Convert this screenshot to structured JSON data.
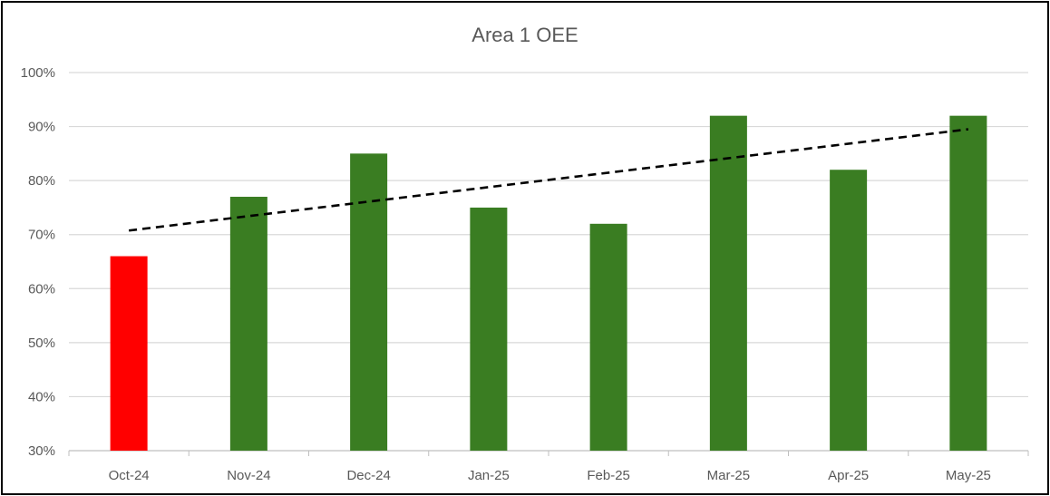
{
  "chart_data": {
    "type": "bar",
    "title": "Area 1 OEE",
    "xlabel": "",
    "ylabel": "",
    "categories": [
      "Oct-24",
      "Nov-24",
      "Dec-24",
      "Jan-25",
      "Feb-25",
      "Mar-25",
      "Apr-25",
      "May-25"
    ],
    "values": [
      0.66,
      0.77,
      0.85,
      0.75,
      0.72,
      0.92,
      0.82,
      0.92
    ],
    "bar_colors": [
      "#ff0000",
      "#3a7d22",
      "#3a7d22",
      "#3a7d22",
      "#3a7d22",
      "#3a7d22",
      "#3a7d22",
      "#3a7d22"
    ],
    "ylim": [
      0.3,
      1.0
    ],
    "yticks": [
      0.3,
      0.4,
      0.5,
      0.6,
      0.7,
      0.8,
      0.9,
      1.0
    ],
    "ytick_labels": [
      "30%",
      "40%",
      "50%",
      "60%",
      "70%",
      "80%",
      "90%",
      "100%"
    ],
    "grid": "horizontal",
    "legend": "none",
    "trendline": {
      "type": "linear",
      "style": "dashed",
      "color": "#000000"
    }
  }
}
